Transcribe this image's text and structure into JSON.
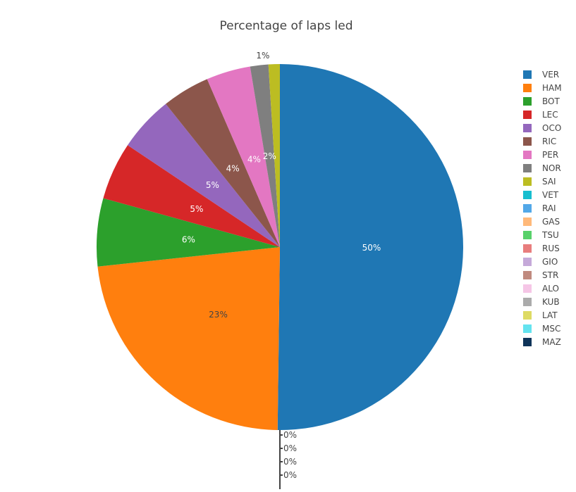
{
  "chart_data": {
    "type": "pie",
    "title": "Percentage of laps led",
    "legend_position": "right",
    "slices": [
      {
        "label": "VER",
        "value": 50.2,
        "text": "50%",
        "color": "#1f77b4"
      },
      {
        "label": "HAM",
        "value": 23.1,
        "text": "23%",
        "color": "#ff7f0e"
      },
      {
        "label": "BOT",
        "value": 6.0,
        "text": "6%",
        "color": "#2ca02c"
      },
      {
        "label": "LEC",
        "value": 5.1,
        "text": "5%",
        "color": "#d62728"
      },
      {
        "label": "OCO",
        "value": 4.9,
        "text": "5%",
        "color": "#9467bd"
      },
      {
        "label": "RIC",
        "value": 4.2,
        "text": "4%",
        "color": "#8c564b"
      },
      {
        "label": "PER",
        "value": 3.9,
        "text": "4%",
        "color": "#e377c2"
      },
      {
        "label": "NOR",
        "value": 1.6,
        "text": "2%",
        "color": "#7f7f7f"
      },
      {
        "label": "SAI",
        "value": 1.0,
        "text": "1%",
        "color": "#bcbd22"
      },
      {
        "label": "VET",
        "value": 0,
        "text": "0%",
        "color": "#17becf"
      },
      {
        "label": "RAI",
        "value": 0,
        "text": "0%",
        "color": "#52a8e8"
      },
      {
        "label": "GAS",
        "value": 0,
        "text": "0%",
        "color": "#ffb97a"
      },
      {
        "label": "TSU",
        "value": 0,
        "text": "0%",
        "color": "#58d16a"
      },
      {
        "label": "RUS",
        "value": 0,
        "text": "",
        "color": "#e87d7d"
      },
      {
        "label": "GIO",
        "value": 0,
        "text": "",
        "color": "#c5a9d9"
      },
      {
        "label": "STR",
        "value": 0,
        "text": "",
        "color": "#c08a7f"
      },
      {
        "label": "ALO",
        "value": 0,
        "text": "",
        "color": "#f5c6e6"
      },
      {
        "label": "KUB",
        "value": 0,
        "text": "",
        "color": "#ababab"
      },
      {
        "label": "LAT",
        "value": 0,
        "text": "",
        "color": "#dedb64"
      },
      {
        "label": "MSC",
        "value": 0,
        "text": "",
        "color": "#64e3ef"
      },
      {
        "label": "MAZ",
        "value": 0,
        "text": "",
        "color": "#0f3459"
      }
    ]
  }
}
